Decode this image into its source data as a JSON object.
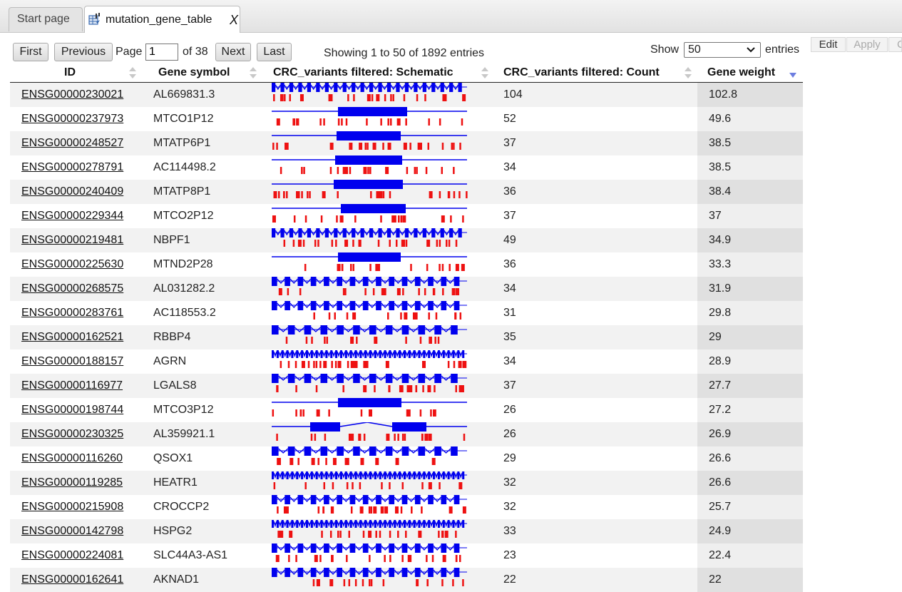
{
  "tabs": [
    {
      "label": "Start page"
    },
    {
      "label": "mutation_gene_table",
      "close": "X"
    }
  ],
  "pager": {
    "first": "First",
    "previous": "Previous",
    "page_label": "Page",
    "page_value": "1",
    "of_label": "of 38",
    "next": "Next",
    "last": "Last",
    "showing": "Showing 1 to 50 of 1892 entries"
  },
  "length": {
    "show_label": "Show",
    "selected": "50",
    "entries_label": "entries"
  },
  "side_buttons": {
    "edit": "Edit",
    "apply": "Apply",
    "third": "C"
  },
  "columns": [
    "ID",
    "Gene symbol",
    "CRC_variants filtered: Schematic",
    "CRC_variants filtered: Count",
    "Gene weight"
  ],
  "colors": {
    "exon": "#0000ee",
    "variant": "#ee1111",
    "sort_active": "#6d7ee0"
  },
  "rows": [
    {
      "id": "ENSG00000230021",
      "symbol": "AL669831.3",
      "count": "104",
      "weight": "102.8",
      "glyph": "exons-many"
    },
    {
      "id": "ENSG00000237973",
      "symbol": "MTCO1P12",
      "count": "52",
      "weight": "49.6",
      "glyph": "single-exon"
    },
    {
      "id": "ENSG00000248527",
      "symbol": "MTATP6P1",
      "count": "37",
      "weight": "38.5",
      "glyph": "single-exon"
    },
    {
      "id": "ENSG00000278791",
      "symbol": "AC114498.2",
      "count": "34",
      "weight": "38.5",
      "glyph": "single-exon"
    },
    {
      "id": "ENSG00000240409",
      "symbol": "MTATP8P1",
      "count": "36",
      "weight": "38.4",
      "glyph": "single-exon"
    },
    {
      "id": "ENSG00000229344",
      "symbol": "MTCO2P12",
      "count": "37",
      "weight": "37",
      "glyph": "single-exon"
    },
    {
      "id": "ENSG00000219481",
      "symbol": "NBPF1",
      "count": "49",
      "weight": "34.9",
      "glyph": "exons-many"
    },
    {
      "id": "ENSG00000225630",
      "symbol": "MTND2P28",
      "count": "36",
      "weight": "33.3",
      "glyph": "single-exon"
    },
    {
      "id": "ENSG00000268575",
      "symbol": "AL031282.2",
      "count": "34",
      "weight": "31.9",
      "glyph": "exons-mid"
    },
    {
      "id": "ENSG00000283761",
      "symbol": "AC118553.2",
      "count": "31",
      "weight": "29.8",
      "glyph": "exons-mid"
    },
    {
      "id": "ENSG00000162521",
      "symbol": "RBBP4",
      "count": "35",
      "weight": "29",
      "glyph": "exons-few"
    },
    {
      "id": "ENSG00000188157",
      "symbol": "AGRN",
      "count": "34",
      "weight": "28.9",
      "glyph": "exons-dense"
    },
    {
      "id": "ENSG00000116977",
      "symbol": "LGALS8",
      "count": "37",
      "weight": "27.7",
      "glyph": "exons-few"
    },
    {
      "id": "ENSG00000198744",
      "symbol": "MTCO3P12",
      "count": "26",
      "weight": "27.2",
      "glyph": "single-exon"
    },
    {
      "id": "ENSG00000230325",
      "symbol": "AL359921.1",
      "count": "26",
      "weight": "26.9",
      "glyph": "two-exon"
    },
    {
      "id": "ENSG00000116260",
      "symbol": "QSOX1",
      "count": "29",
      "weight": "26.6",
      "glyph": "exons-few"
    },
    {
      "id": "ENSG00000119285",
      "symbol": "HEATR1",
      "count": "32",
      "weight": "26.6",
      "glyph": "exons-dense"
    },
    {
      "id": "ENSG00000215908",
      "symbol": "CROCCP2",
      "count": "32",
      "weight": "25.7",
      "glyph": "exons-mid"
    },
    {
      "id": "ENSG00000142798",
      "symbol": "HSPG2",
      "count": "33",
      "weight": "24.9",
      "glyph": "exons-dense"
    },
    {
      "id": "ENSG00000224081",
      "symbol": "SLC44A3-AS1",
      "count": "23",
      "weight": "22.4",
      "glyph": "exons-mid"
    },
    {
      "id": "ENSG00000162641",
      "symbol": "AKNAD1",
      "count": "22",
      "weight": "22",
      "glyph": "exons-mid"
    }
  ]
}
